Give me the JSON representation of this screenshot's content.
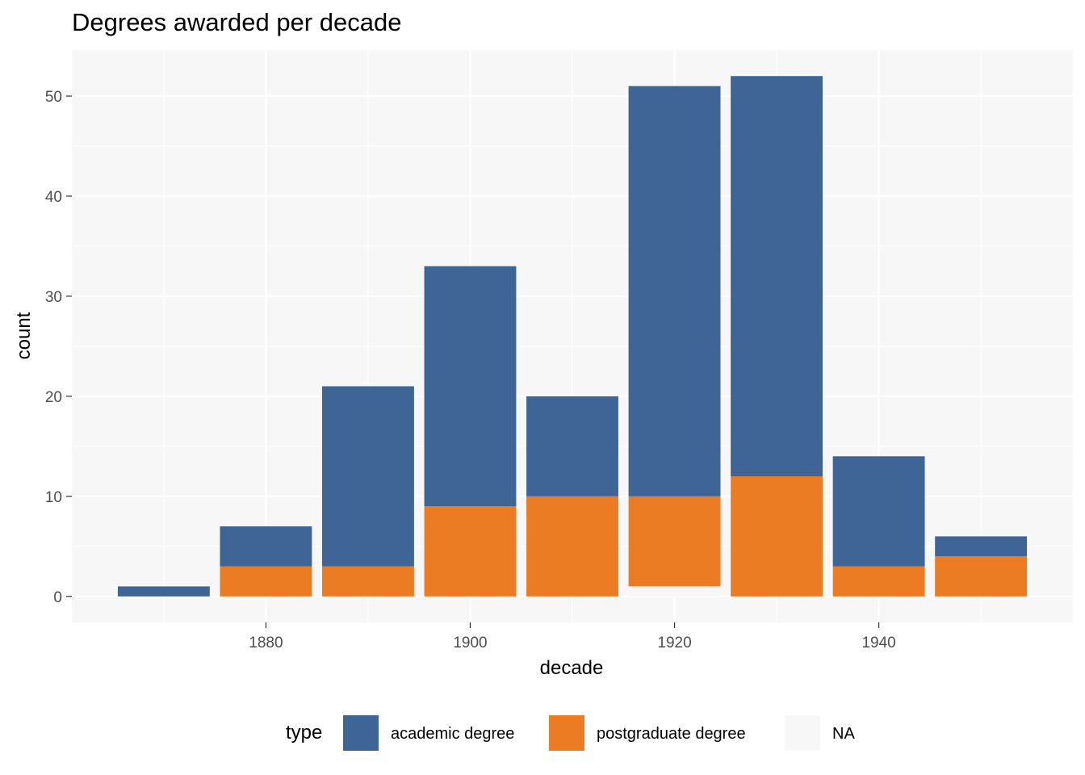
{
  "title": "Degrees awarded per decade",
  "colors": {
    "panel_background": "#f7f7f7",
    "grid": "#ffffff",
    "academic degree": "#3e6595",
    "postgraduate degree": "#ec7c24",
    "NA": "#f7f7f7"
  },
  "legend": {
    "title": "type",
    "items": [
      {
        "label": "academic degree",
        "color": "#3e6595"
      },
      {
        "label": "postgraduate degree",
        "color": "#ec7c24"
      },
      {
        "label": "NA",
        "color": "#f7f7f7"
      }
    ]
  },
  "chart_data": {
    "type": "bar",
    "stacked": true,
    "title": "Degrees awarded per decade",
    "xlabel": "decade",
    "ylabel": "count",
    "x": [
      1870,
      1880,
      1890,
      1900,
      1910,
      1920,
      1930,
      1940,
      1950
    ],
    "xticks": [
      1880,
      1900,
      1920,
      1940
    ],
    "yticks": [
      0,
      10,
      20,
      30,
      40,
      50
    ],
    "xlim": [
      1861,
      1959
    ],
    "ylim": [
      -2.6,
      54.6
    ],
    "series": [
      {
        "name": "NA",
        "values": [
          0,
          0,
          0,
          0,
          0,
          1,
          0,
          0,
          0
        ]
      },
      {
        "name": "postgraduate degree",
        "values": [
          0,
          3,
          3,
          9,
          10,
          9,
          12,
          3,
          4
        ]
      },
      {
        "name": "academic degree",
        "values": [
          1,
          4,
          18,
          24,
          10,
          41,
          40,
          11,
          2
        ]
      }
    ],
    "grid": true,
    "legend_position": "bottom"
  }
}
